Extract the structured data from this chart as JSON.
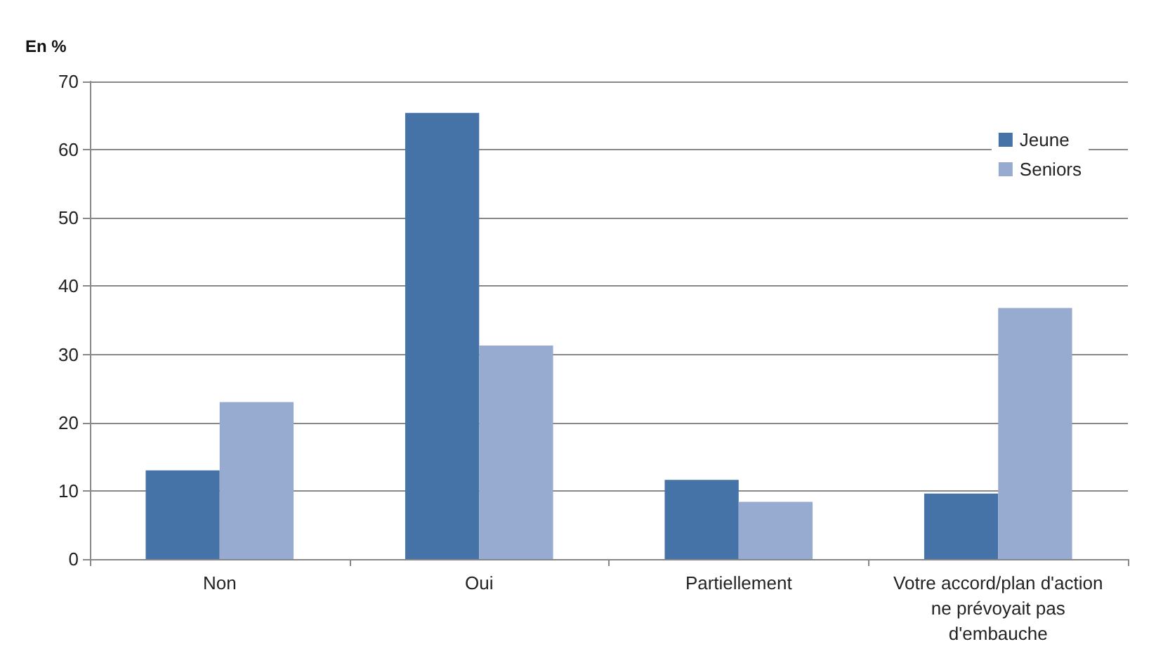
{
  "chart_data": {
    "type": "bar",
    "ylabel": "En %",
    "categories": [
      "Non",
      "Oui",
      "Partiellement",
      "Votre accord/plan d'action ne prévoyait pas d'embauche"
    ],
    "series": [
      {
        "name": "Jeune",
        "color": "#4572a7",
        "values": [
          13,
          65.4,
          11.6,
          9.6
        ]
      },
      {
        "name": "Seniors",
        "color": "#97abd0",
        "values": [
          23,
          31.3,
          8.4,
          36.8
        ]
      }
    ],
    "ylim": [
      0,
      70
    ],
    "yticks": [
      0,
      10,
      20,
      30,
      40,
      50,
      60,
      70
    ],
    "grid": "y",
    "legend": "top right"
  }
}
